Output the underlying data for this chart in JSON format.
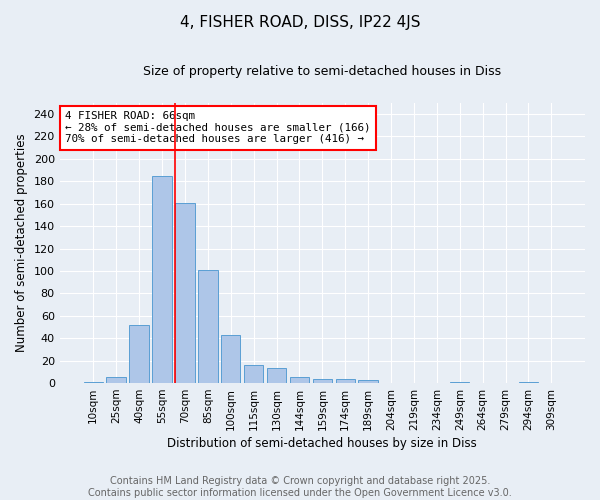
{
  "title": "4, FISHER ROAD, DISS, IP22 4JS",
  "subtitle": "Size of property relative to semi-detached houses in Diss",
  "xlabel": "Distribution of semi-detached houses by size in Diss",
  "ylabel": "Number of semi-detached properties",
  "categories": [
    "10sqm",
    "25sqm",
    "40sqm",
    "55sqm",
    "70sqm",
    "85sqm",
    "100sqm",
    "115sqm",
    "130sqm",
    "144sqm",
    "159sqm",
    "174sqm",
    "189sqm",
    "204sqm",
    "219sqm",
    "234sqm",
    "249sqm",
    "264sqm",
    "279sqm",
    "294sqm",
    "309sqm"
  ],
  "bar_values": [
    1,
    5,
    52,
    185,
    161,
    101,
    43,
    16,
    13,
    5,
    4,
    4,
    3,
    0,
    0,
    0,
    1,
    0,
    0,
    1,
    0
  ],
  "bar_color": "#aec6e8",
  "bar_edge_color": "#5a9fd4",
  "background_color": "#e8eef5",
  "grid_color": "#ffffff",
  "vline_index": 4,
  "vline_color": "red",
  "annotation_title": "4 FISHER ROAD: 66sqm",
  "annotation_line1": "← 28% of semi-detached houses are smaller (166)",
  "annotation_line2": "70% of semi-detached houses are larger (416) →",
  "annotation_box_color": "white",
  "annotation_box_edge": "red",
  "ylim": [
    0,
    250
  ],
  "yticks": [
    0,
    20,
    40,
    60,
    80,
    100,
    120,
    140,
    160,
    180,
    200,
    220,
    240
  ],
  "footer_line1": "Contains HM Land Registry data © Crown copyright and database right 2025.",
  "footer_line2": "Contains public sector information licensed under the Open Government Licence v3.0.",
  "title_fontsize": 11,
  "subtitle_fontsize": 9,
  "footer_fontsize": 7,
  "footer_color": "#666666"
}
